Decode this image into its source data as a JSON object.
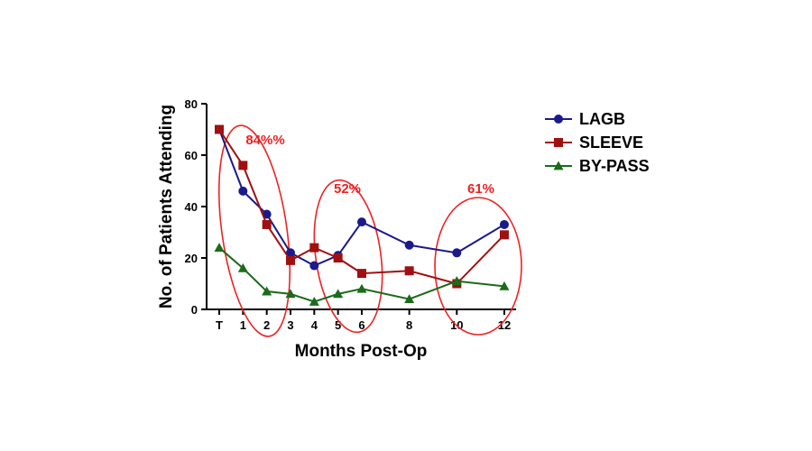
{
  "chart_data": {
    "type": "line",
    "xlabel": "Months Post-Op",
    "ylabel": "No. of Patients Attending",
    "ylim": [
      0,
      80
    ],
    "yticks": [
      0,
      20,
      40,
      60,
      80
    ],
    "xticks": [
      {
        "label": "T",
        "pos": 0
      },
      {
        "label": "1",
        "pos": 1
      },
      {
        "label": "2",
        "pos": 2
      },
      {
        "label": "3",
        "pos": 3
      },
      {
        "label": "4",
        "pos": 4
      },
      {
        "label": "5",
        "pos": 5
      },
      {
        "label": "6",
        "pos": 6
      },
      {
        "label": "8",
        "pos": 8
      },
      {
        "label": "10",
        "pos": 10
      },
      {
        "label": "12",
        "pos": 12
      }
    ],
    "x": [
      0,
      1,
      2,
      3,
      4,
      5,
      6,
      8,
      10,
      12
    ],
    "series": [
      {
        "name": "LAGB",
        "color": "#1a1a8c",
        "marker": "circle",
        "values": [
          70,
          46,
          37,
          22,
          17,
          21,
          34,
          25,
          22,
          33
        ]
      },
      {
        "name": "SLEEVE",
        "color": "#a01010",
        "marker": "square",
        "values": [
          70,
          56,
          33,
          19,
          24,
          20,
          14,
          15,
          10,
          29
        ]
      },
      {
        "name": "BY-PASS",
        "color": "#1a6b1a",
        "marker": "triangle",
        "values": [
          24,
          16,
          7,
          6,
          3,
          6,
          8,
          4,
          11,
          9
        ]
      }
    ],
    "annotations": [
      {
        "text": "84%%",
        "color": "#ee2222",
        "anchor_x": 1.5
      },
      {
        "text": "52%",
        "color": "#ee2222",
        "anchor_x": 5.5
      },
      {
        "text": "61%",
        "color": "#ee2222",
        "anchor_x": 11
      }
    ],
    "legend_position": "right",
    "grid": false
  }
}
